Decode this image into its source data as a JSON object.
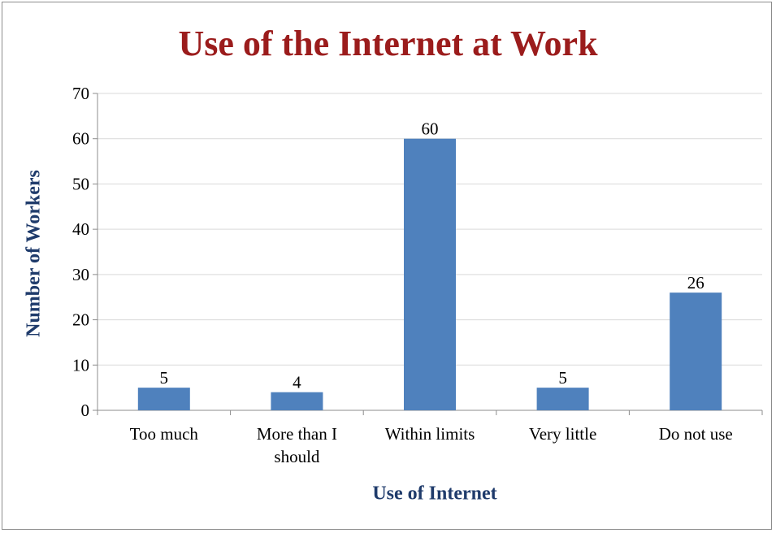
{
  "chart_data": {
    "type": "bar",
    "title": "Use of the Internet at Work",
    "xlabel": "Use of  Internet",
    "ylabel": "Number of  Workers",
    "categories": [
      [
        "Too much"
      ],
      [
        "More than I",
        "should"
      ],
      [
        "Within limits"
      ],
      [
        "Very little"
      ],
      [
        "Do not use"
      ]
    ],
    "values": [
      5,
      4,
      60,
      5,
      26
    ],
    "ylim": [
      0,
      70
    ],
    "yticks": [
      0,
      10,
      20,
      30,
      40,
      50,
      60,
      70
    ],
    "grid": true,
    "bar_color": "#4f81bd",
    "gridline_color": "#d9d9d9",
    "axis_color": "#8c8c8c"
  }
}
